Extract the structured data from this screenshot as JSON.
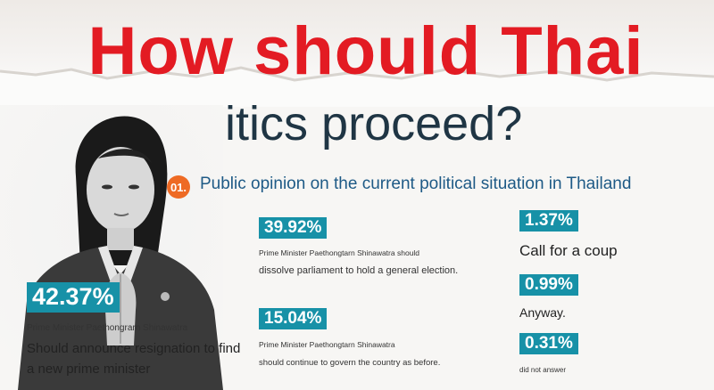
{
  "title": {
    "line1": "How should Thai",
    "line2": "politics proceed?"
  },
  "section": {
    "number": "01.",
    "heading": "Public opinion on the current political situation in Thailand"
  },
  "colors": {
    "title_red": "#e31b23",
    "title_navy": "#1f3544",
    "accent_teal": "#1791a7",
    "badge_orange": "#ee6a24"
  },
  "results": [
    {
      "percent": "42.37%",
      "subject": "Prime Minister Paethongrarn Shinawatra",
      "text_line1": "Should announce resignation to find",
      "text_line2": "a new prime minister"
    },
    {
      "percent": "39.92%",
      "subject": "Prime Minister Paethongtarn Shinawatra",
      "subject_suffix": "should",
      "text": "dissolve parliament to hold a general election."
    },
    {
      "percent": "15.04%",
      "subject": "Prime Minister Paethongtarn Shinawatra",
      "text": "should continue to govern the country as before."
    },
    {
      "percent": "1.37%",
      "text": "Call for a coup"
    },
    {
      "percent": "0.99%",
      "text": "Anyway."
    },
    {
      "percent": "0.31%",
      "text": "did not answer"
    }
  ]
}
